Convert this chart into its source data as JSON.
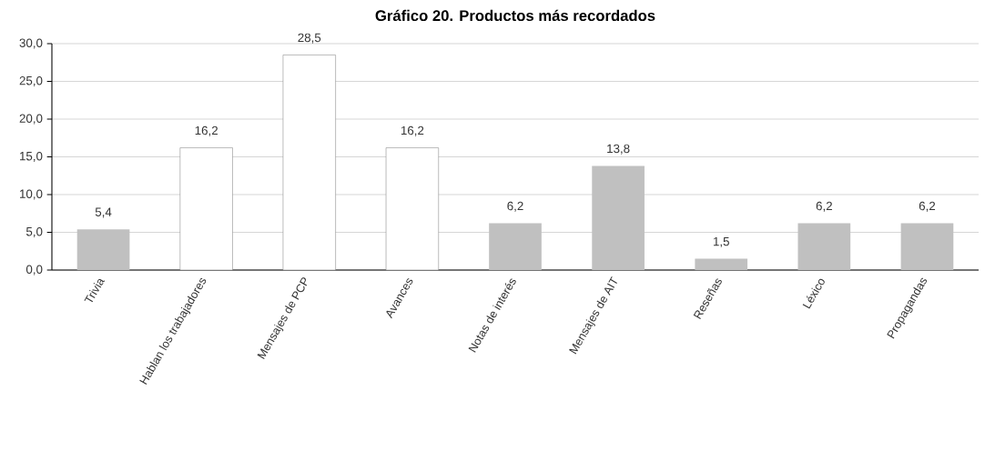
{
  "chart_data": {
    "type": "bar",
    "title": "**Gráfico 20. Productos más recordados**",
    "categories": [
      "Trivia",
      "Hablan los trabajadores",
      "Mensajes de PCP",
      "Avances",
      "Notas de interés",
      "Mensajes de AIT",
      "Reseñas",
      "Léxico",
      "Propagandas"
    ],
    "values": [
      5.4,
      16.2,
      28.5,
      16.2,
      6.2,
      13.8,
      1.5,
      6.2,
      6.2
    ],
    "value_labels": [
      "5,4",
      "16,2",
      "28,5",
      "16,2",
      "6,2",
      "13,8",
      "1,5",
      "6,2",
      "6,2"
    ],
    "colors": [
      "#c0c0c0",
      "#ffffff",
      "#ffffff",
      "#ffffff",
      "#c0c0c0",
      "#c0c0c0",
      "#c0c0c0",
      "#c0c0c0",
      "#c0c0c0"
    ],
    "ylim": [
      0,
      30
    ],
    "yticks": [
      {
        "value": 0,
        "label": "0,0"
      },
      {
        "value": 5,
        "label": "5,0"
      },
      {
        "value": 10,
        "label": "10,0"
      },
      {
        "value": 15,
        "label": "15,0"
      },
      {
        "value": 20,
        "label": "20,0"
      },
      {
        "value": 25,
        "label": "25,0"
      },
      {
        "value": 30,
        "label": "30,0"
      }
    ],
    "grid": "y"
  }
}
